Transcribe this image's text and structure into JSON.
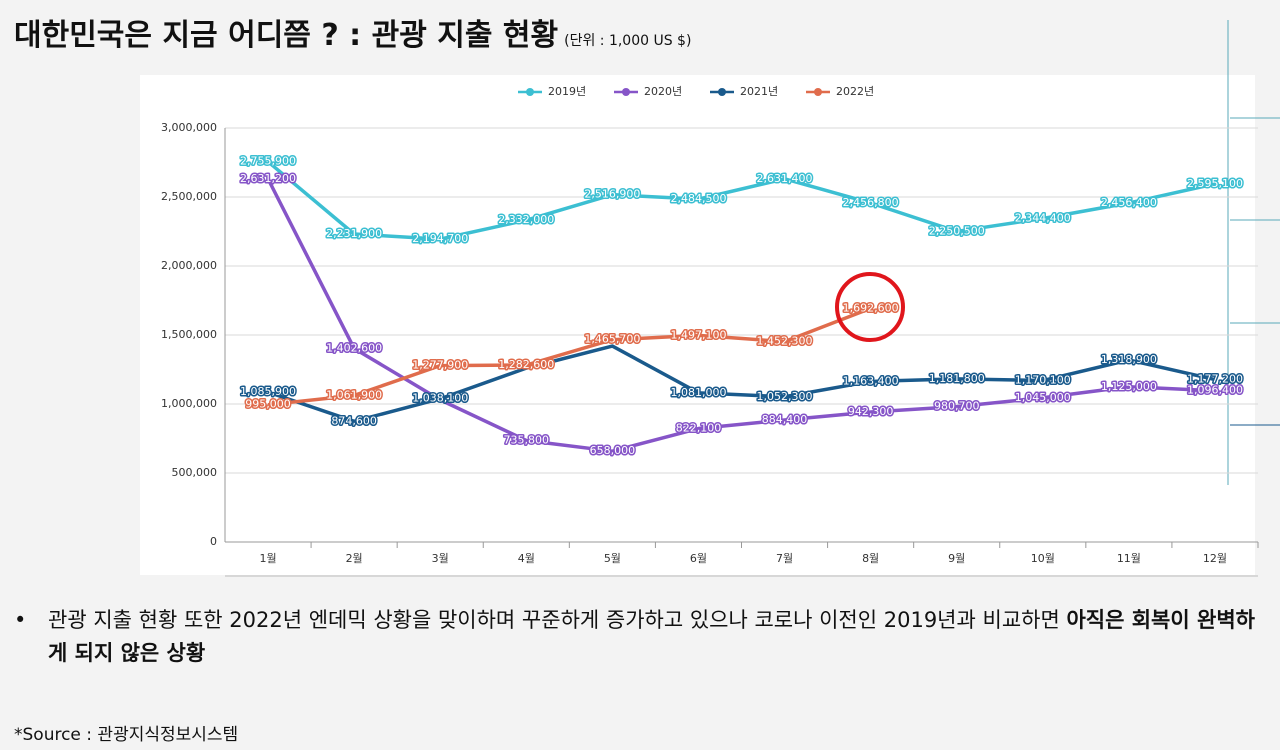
{
  "title": "대한민국은 지금 어디쯤 ? : 관광 지출 현황",
  "unit": "(단위 : 1,000 US $)",
  "chart_data": {
    "type": "line",
    "categories": [
      "1월",
      "2월",
      "3월",
      "4월",
      "5월",
      "6월",
      "7월",
      "8월",
      "9월",
      "10월",
      "11월",
      "12월"
    ],
    "ylim": [
      0,
      3000000
    ],
    "yticks": [
      0,
      {
        "value": 500000,
        "label": "500,000"
      },
      {
        "value": 1000000,
        "label": "1,000,000"
      },
      {
        "value": 1500000,
        "label": "1,500,000"
      },
      {
        "value": 2000000,
        "label": "2,000,000"
      },
      {
        "value": 2500000,
        "label": "2,500,000"
      },
      {
        "value": 3000000,
        "label": "3,000,000"
      }
    ],
    "grid": true,
    "legend": "top",
    "series": [
      {
        "name": "2019년",
        "color": "#3cbfd2",
        "values": [
          2755900,
          2231900,
          2194700,
          2332000,
          2516900,
          2484500,
          2631400,
          2456800,
          2250500,
          2344400,
          2456400,
          2595100
        ],
        "value_labels": [
          "2,755,900",
          "2,231,900",
          "2,194,700",
          "2,332,000",
          "2,516,900",
          "2,484,500",
          "2,631,400",
          "2,456,800",
          "2,250,500",
          "2,344,400",
          "2,456,400",
          "2,595,100"
        ]
      },
      {
        "name": "2020년",
        "color": "#8655c8",
        "values": [
          2631200,
          1402600,
          1030000,
          735800,
          658000,
          822100,
          884400,
          942300,
          980700,
          1045000,
          1125000,
          1096400
        ],
        "value_labels": [
          "2,631,200",
          "1,402,600",
          null,
          "735,800",
          "658,000",
          "822,100",
          "884,400",
          "942,300",
          "980,700",
          "1,045,000",
          "1,125,000",
          "1,096,400"
        ]
      },
      {
        "name": "2021년",
        "color": "#1a5a8c",
        "values": [
          1085900,
          874600,
          1038100,
          1260000,
          1420000,
          1081000,
          1052300,
          1163400,
          1181800,
          1170100,
          1318900,
          1177200
        ],
        "value_labels": [
          "1,085,900",
          "874,600",
          "1,038,100",
          null,
          null,
          "1,081,000",
          "1,052,300",
          "1,163,400",
          "1,181,800",
          "1,170,100",
          "1,318,900",
          "1,177,200"
        ]
      },
      {
        "name": "2022년",
        "color": "#e06c4c",
        "values": [
          995000,
          1061900,
          1277900,
          1282600,
          1465700,
          1497100,
          1452300,
          1692600,
          null,
          null,
          null,
          null
        ],
        "value_labels": [
          "995,000",
          "1,061,900",
          "1,277,900",
          "1,282,600",
          "1,465,700",
          "1,497,100",
          "1,452,300",
          "1,692,600",
          null,
          null,
          null,
          null
        ]
      }
    ]
  },
  "bullet": {
    "text": "관광 지출 현황 또한 2022년 엔데믹 상황을 맞이하며 꾸준하게 증가하고 있으나 코로나 이전인 2019년과 비교하면 ",
    "bold": "아직은 회복이 완벽하게 되지 않은 상황"
  },
  "source": "*Source : 관광지식정보시스템"
}
